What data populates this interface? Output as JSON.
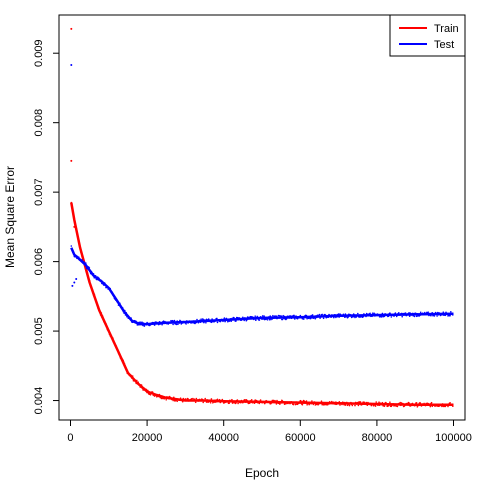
{
  "chart_data": {
    "type": "line",
    "title": "",
    "xlabel": "Epoch",
    "ylabel": "Mean Square Error",
    "xlim": [
      -3000,
      103000
    ],
    "ylim": [
      0.00372,
      0.00955
    ],
    "grid": false,
    "legend_position": "top-right",
    "x_ticks": [
      0,
      20000,
      40000,
      60000,
      80000,
      100000
    ],
    "x_tick_labels": [
      "0",
      "20000",
      "40000",
      "60000",
      "80000",
      "100000"
    ],
    "y_ticks": [
      0.004,
      0.005,
      0.006,
      0.007,
      0.008,
      0.009
    ],
    "y_tick_labels": [
      "0.004",
      "0.005",
      "0.006",
      "0.007",
      "0.008",
      "0.009"
    ],
    "series": [
      {
        "name": "Train",
        "color": "#ff0000",
        "x": [
          200,
          1000,
          2500,
          5000,
          7500,
          10000,
          12500,
          15000,
          17500,
          20000,
          22500,
          25000,
          30000,
          35000,
          40000,
          50000,
          60000,
          70000,
          80000,
          90000,
          100000
        ],
        "values": [
          0.00685,
          0.0066,
          0.0062,
          0.0057,
          0.0053,
          0.005,
          0.0047,
          0.0044,
          0.00425,
          0.00413,
          0.00408,
          0.00404,
          0.004,
          0.004,
          0.00399,
          0.00398,
          0.00397,
          0.00396,
          0.00395,
          0.00394,
          0.00394
        ],
        "outliers": [
          {
            "x": 200,
            "y": 0.00935
          },
          {
            "x": 200,
            "y": 0.00745
          },
          {
            "x": 1000,
            "y": 0.0065
          }
        ]
      },
      {
        "name": "Test",
        "color": "#0000ff",
        "x": [
          200,
          1000,
          2000,
          3000,
          4000,
          6000,
          8000,
          10000,
          12000,
          14000,
          16000,
          18000,
          20000,
          25000,
          30000,
          40000,
          50000,
          60000,
          70000,
          80000,
          90000,
          100000
        ],
        "values": [
          0.0062,
          0.0061,
          0.00605,
          0.006,
          0.00595,
          0.0058,
          0.00572,
          0.00562,
          0.00545,
          0.00528,
          0.00515,
          0.0051,
          0.0051,
          0.00512,
          0.00513,
          0.00516,
          0.00519,
          0.0052,
          0.00522,
          0.00523,
          0.00524,
          0.00525
        ],
        "outliers": [
          {
            "x": 200,
            "y": 0.00883
          },
          {
            "x": 500,
            "y": 0.00565
          },
          {
            "x": 1000,
            "y": 0.0057
          },
          {
            "x": 1500,
            "y": 0.00575
          }
        ]
      }
    ]
  }
}
